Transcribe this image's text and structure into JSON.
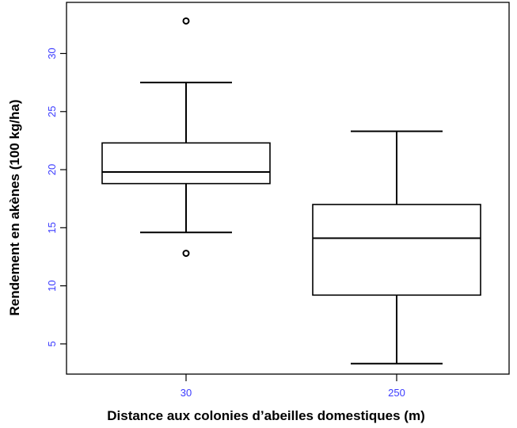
{
  "chart_data": {
    "type": "boxplot",
    "categories": [
      "30",
      "250"
    ],
    "xlabel": "Distance aux colonies d’abeilles domestiques (m)",
    "ylabel": "Rendement en akènes (100 kg/ha)",
    "ylim": [
      2.4,
      34.4
    ],
    "yticks": [
      5,
      10,
      15,
      20,
      25,
      30
    ],
    "tick_label_color": "#3b3bff",
    "grid": false,
    "legend": "none",
    "boxes": [
      {
        "category": "30",
        "whisker_low": 14.6,
        "q1": 18.8,
        "median": 19.8,
        "q3": 22.3,
        "whisker_high": 27.5,
        "outliers": [
          32.8,
          12.8
        ]
      },
      {
        "category": "250",
        "whisker_low": 3.3,
        "q1": 9.2,
        "median": 14.1,
        "q3": 17.0,
        "whisker_high": 23.3,
        "outliers": []
      }
    ]
  }
}
